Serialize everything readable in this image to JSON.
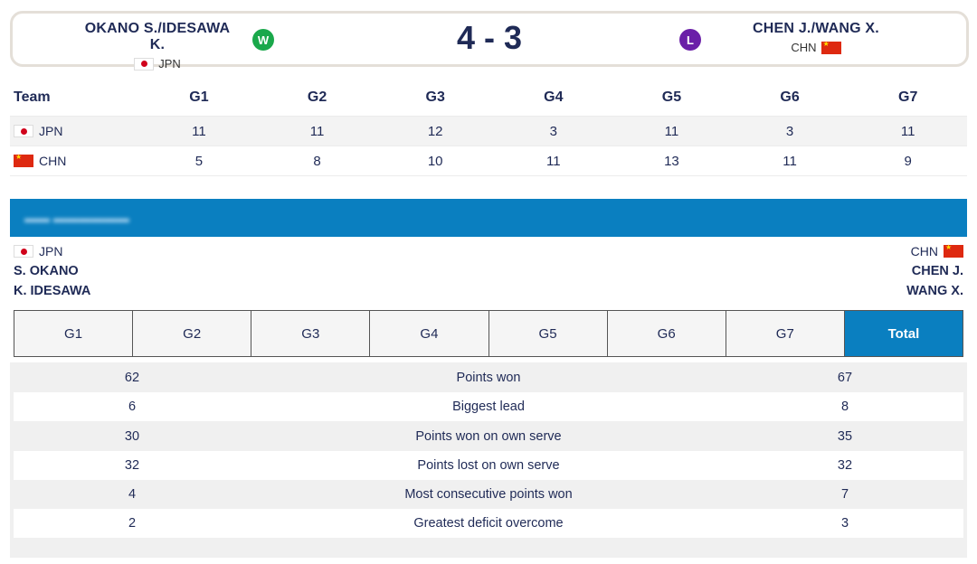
{
  "match": {
    "left_team": {
      "name": "OKANO S./IDESAWA K.",
      "country": "JPN",
      "result": "W"
    },
    "right_team": {
      "name": "CHEN J./WANG X.",
      "country": "CHN",
      "result": "L"
    },
    "score": "4 - 3",
    "colors": {
      "win": "#1aa84b",
      "loss": "#6a1fa8",
      "accent": "#0a7fc0",
      "text": "#1f2a56"
    }
  },
  "games_table": {
    "header": [
      "Team",
      "G1",
      "G2",
      "G3",
      "G4",
      "G5",
      "G6",
      "G7"
    ],
    "rows": [
      {
        "team": "JPN",
        "scores": [
          "11",
          "11",
          "12",
          "3",
          "11",
          "3",
          "11"
        ]
      },
      {
        "team": "CHN",
        "scores": [
          "5",
          "8",
          "10",
          "11",
          "13",
          "11",
          "9"
        ]
      }
    ]
  },
  "players": {
    "left": {
      "country": "JPN",
      "names": [
        "S. OKANO",
        "K. IDESAWA"
      ]
    },
    "right": {
      "country": "CHN",
      "names": [
        "CHEN J.",
        "WANG X."
      ]
    }
  },
  "tabs": [
    "G1",
    "G2",
    "G3",
    "G4",
    "G5",
    "G6",
    "G7",
    "Total"
  ],
  "active_tab": "Total",
  "stats": [
    {
      "left": "62",
      "label": "Points won",
      "right": "67"
    },
    {
      "left": "6",
      "label": "Biggest lead",
      "right": "8"
    },
    {
      "left": "30",
      "label": "Points won on own serve",
      "right": "35"
    },
    {
      "left": "32",
      "label": "Points lost on own serve",
      "right": "32"
    },
    {
      "left": "4",
      "label": "Most consecutive points won",
      "right": "7"
    },
    {
      "left": "2",
      "label": "Greatest deficit overcome",
      "right": "3"
    }
  ]
}
